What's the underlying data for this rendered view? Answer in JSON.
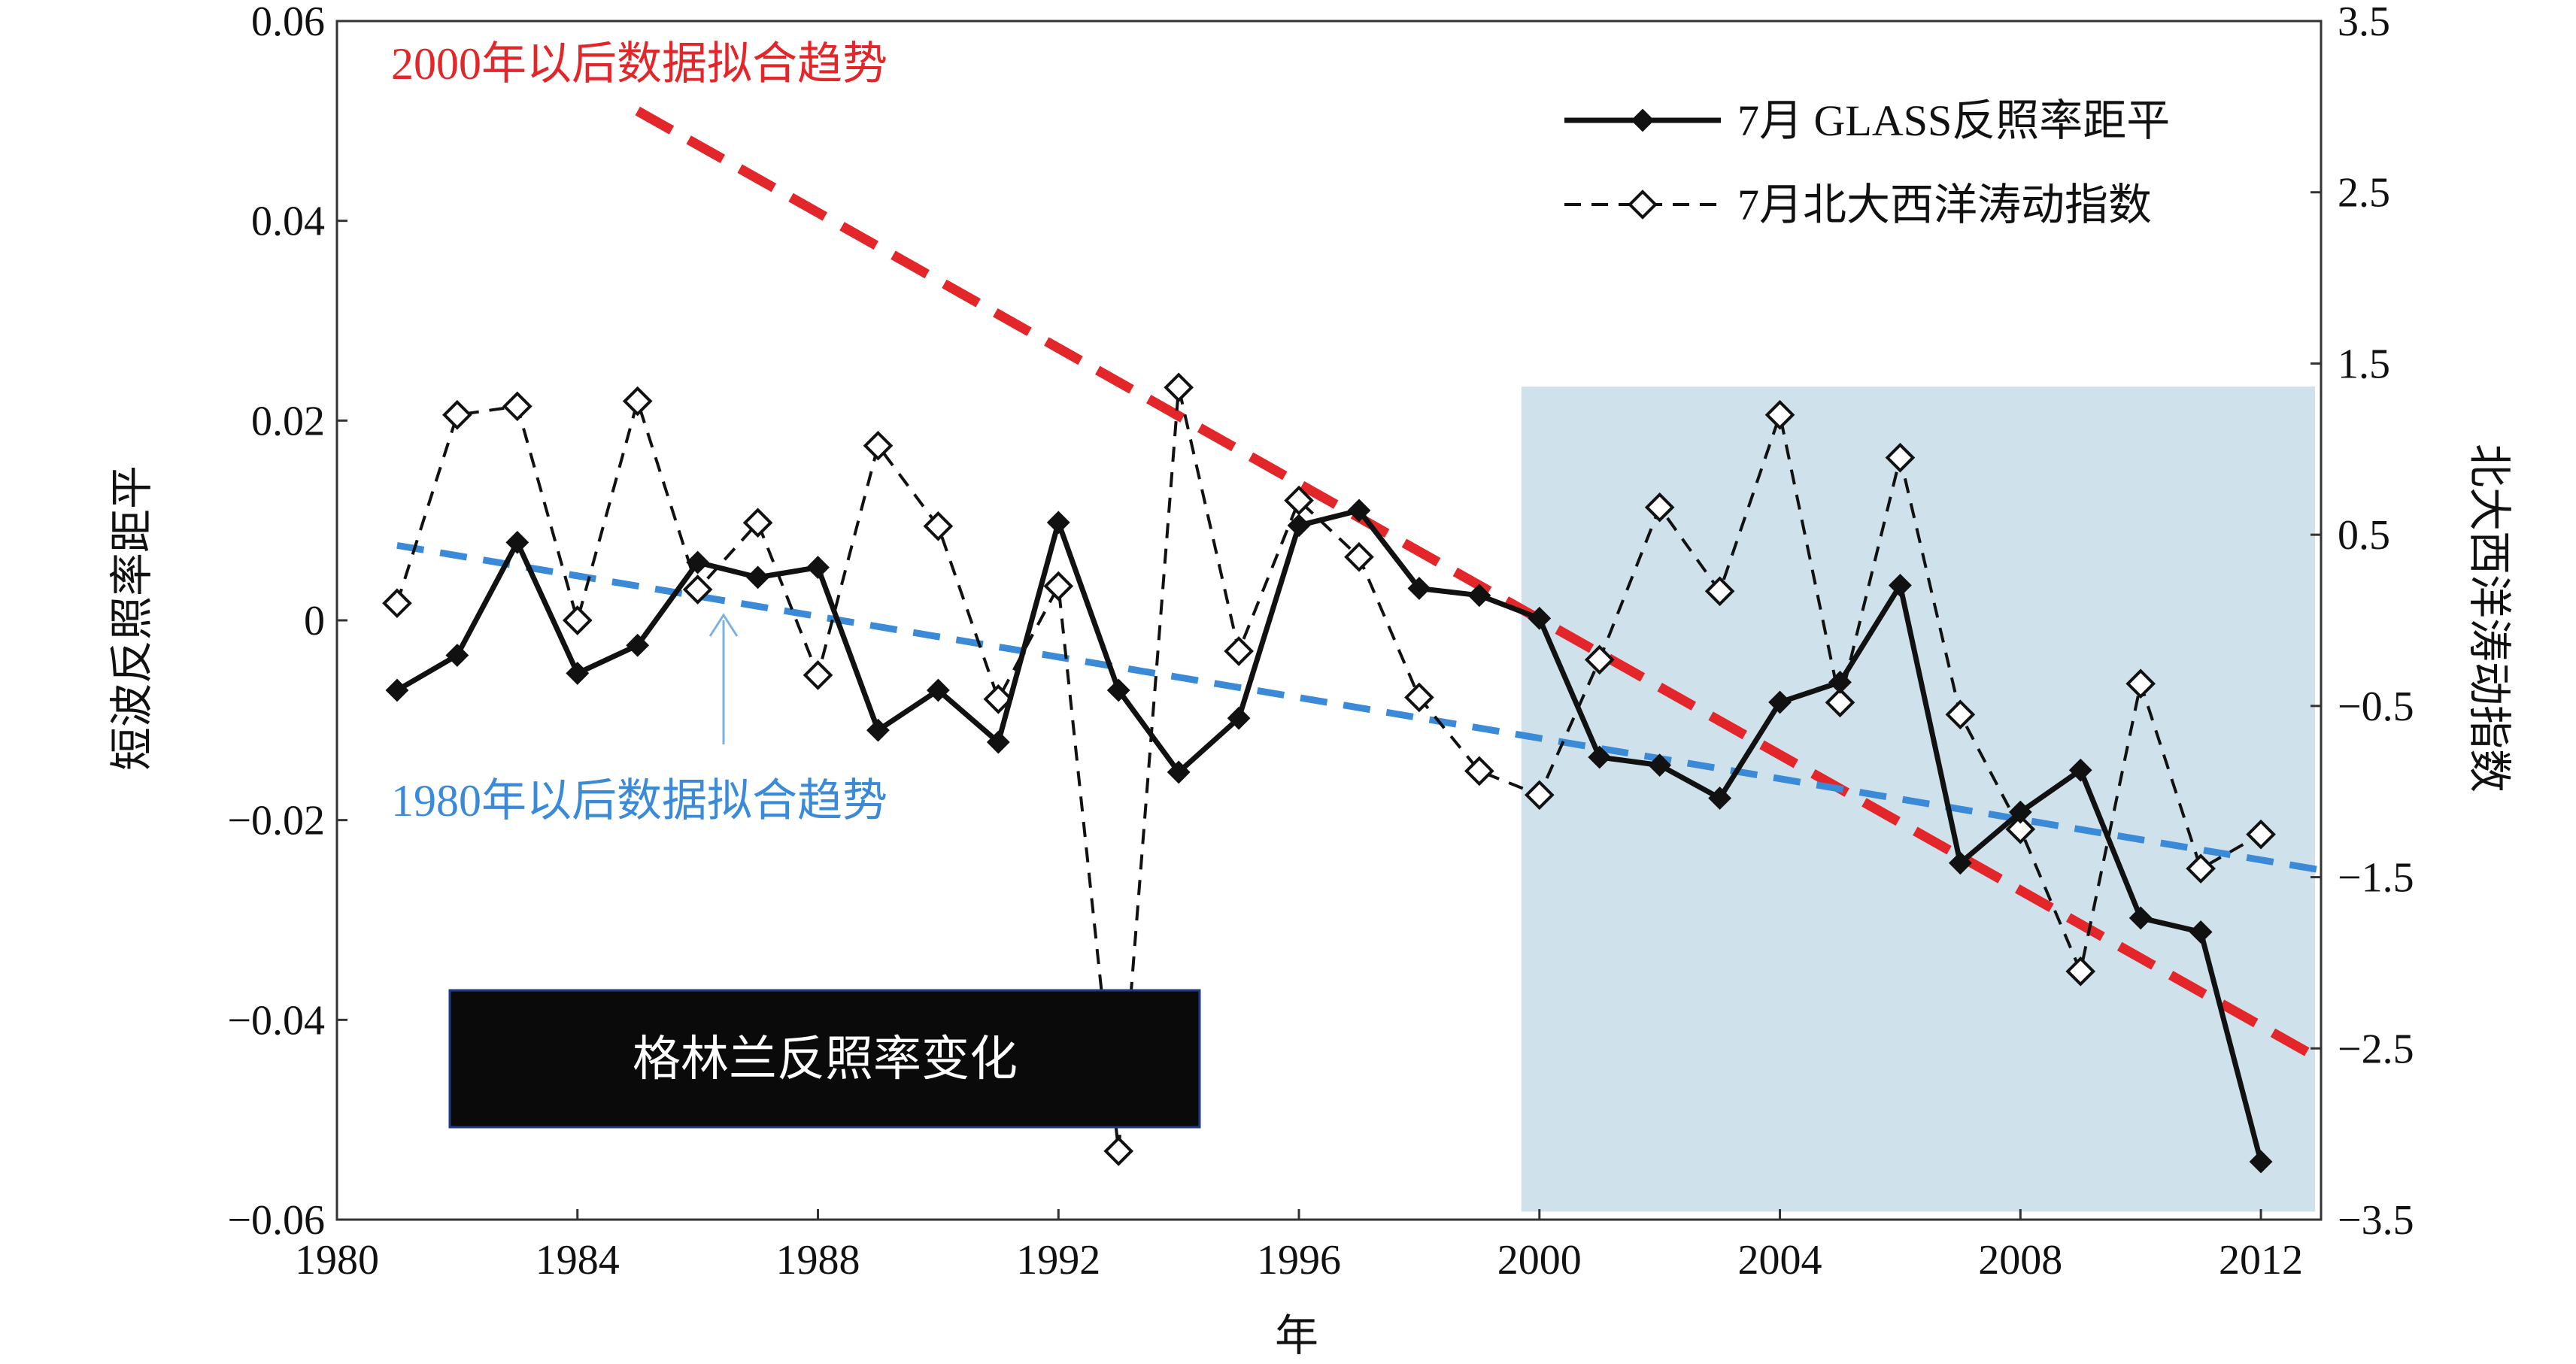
{
  "chart_data": {
    "type": "line",
    "title": "格林兰反照率变化",
    "xlabel": "年",
    "ylabel": "短波反照率距平",
    "ylabel_right": "北大西洋涛动指数",
    "xlim": [
      1980,
      2013
    ],
    "ylim": [
      -0.06,
      0.06
    ],
    "ylim_right": [
      -3.5,
      3.5
    ],
    "x_ticks": [
      1980,
      1984,
      1988,
      1992,
      1996,
      2000,
      2004,
      2008,
      2012
    ],
    "y_ticks": [
      "−0.06",
      "−0.04",
      "−0.02",
      "0",
      "0.02",
      "0.04",
      "0.06"
    ],
    "y_tick_values": [
      -0.06,
      -0.04,
      -0.02,
      0,
      0.02,
      0.04,
      0.06
    ],
    "y_right_ticks": [
      "−3.5",
      "−2.5",
      "−1.5",
      "−0.5",
      "0.5",
      "1.5",
      "2.5",
      "3.5"
    ],
    "y_right_tick_values": [
      -3.5,
      -2.5,
      -1.5,
      -0.5,
      0.5,
      1.5,
      2.5,
      3.5
    ],
    "highlight_period": [
      1999.7,
      2012.9
    ],
    "series": [
      {
        "name": "7月 GLASS反照率距平",
        "axis": "left",
        "style": "solid-filled-diamond",
        "x": [
          1981,
          1982,
          1983,
          1984,
          1985,
          1986,
          1987,
          1988,
          1989,
          1990,
          1991,
          1992,
          1993,
          1994,
          1995,
          1996,
          1997,
          1998,
          1999,
          2000,
          2001,
          2002,
          2003,
          2004,
          2005,
          2006,
          2007,
          2008,
          2009,
          2010,
          2011,
          2012
        ],
        "values": [
          -0.007,
          -0.0035,
          0.0078,
          -0.0053,
          -0.0025,
          0.0058,
          0.0043,
          0.0053,
          -0.011,
          -0.007,
          -0.0122,
          0.0098,
          -0.007,
          -0.0152,
          -0.0098,
          0.0095,
          0.011,
          0.0032,
          0.0025,
          0.0002,
          -0.0137,
          -0.0145,
          -0.0178,
          -0.0082,
          -0.0062,
          0.0035,
          -0.0243,
          -0.0192,
          -0.015,
          -0.0298,
          -0.0312,
          -0.0542
        ]
      },
      {
        "name": "7月北大西洋涛动指数",
        "axis": "right",
        "style": "dashed-open-diamond",
        "x": [
          1981,
          1982,
          1983,
          1984,
          1985,
          1986,
          1987,
          1988,
          1989,
          1990,
          1991,
          1992,
          1993,
          1994,
          1995,
          1996,
          1997,
          1998,
          1999,
          2000,
          2001,
          2002,
          2003,
          2004,
          2005,
          2006,
          2007,
          2008,
          2009,
          2010,
          2011,
          2012
        ],
        "values": [
          0.1,
          1.2,
          1.25,
          0,
          1.28,
          0.18,
          0.57,
          -0.32,
          1.02,
          0.55,
          -0.46,
          0.2,
          -3.1,
          1.36,
          -0.18,
          0.7,
          0.37,
          -0.45,
          -0.88,
          -1.02,
          -0.23,
          0.66,
          0.17,
          1.2,
          -0.48,
          0.95,
          -0.55,
          -1.22,
          -2.05,
          -0.37,
          -1.45,
          -1.25
        ]
      }
    ],
    "trend_lines": [
      {
        "name": "2000年以后数据拟合趋势",
        "color": "#e3262a",
        "axis": "left",
        "from": [
          1985,
          0.051
        ],
        "to": [
          2013,
          -0.044
        ]
      },
      {
        "name": "1980年以后数据拟合趋势",
        "color": "#3b8ad8",
        "axis": "left",
        "from": [
          1981,
          0.0075
        ],
        "to": [
          2013,
          -0.025
        ]
      }
    ],
    "annotations": {
      "red_trend_label": "2000年以后数据拟合趋势",
      "blue_trend_label": "1980年以后数据拟合趋势",
      "box_label": "格林兰反照率变化"
    },
    "legend": {
      "position": "top-right",
      "entries": [
        "7月 GLASS反照率距平",
        "7月北大西洋涛动指数"
      ]
    },
    "colors": {
      "highlight": "#cfe1ea",
      "red": "#e3262a",
      "blue": "#3b8ad8",
      "series": "#111111"
    }
  }
}
